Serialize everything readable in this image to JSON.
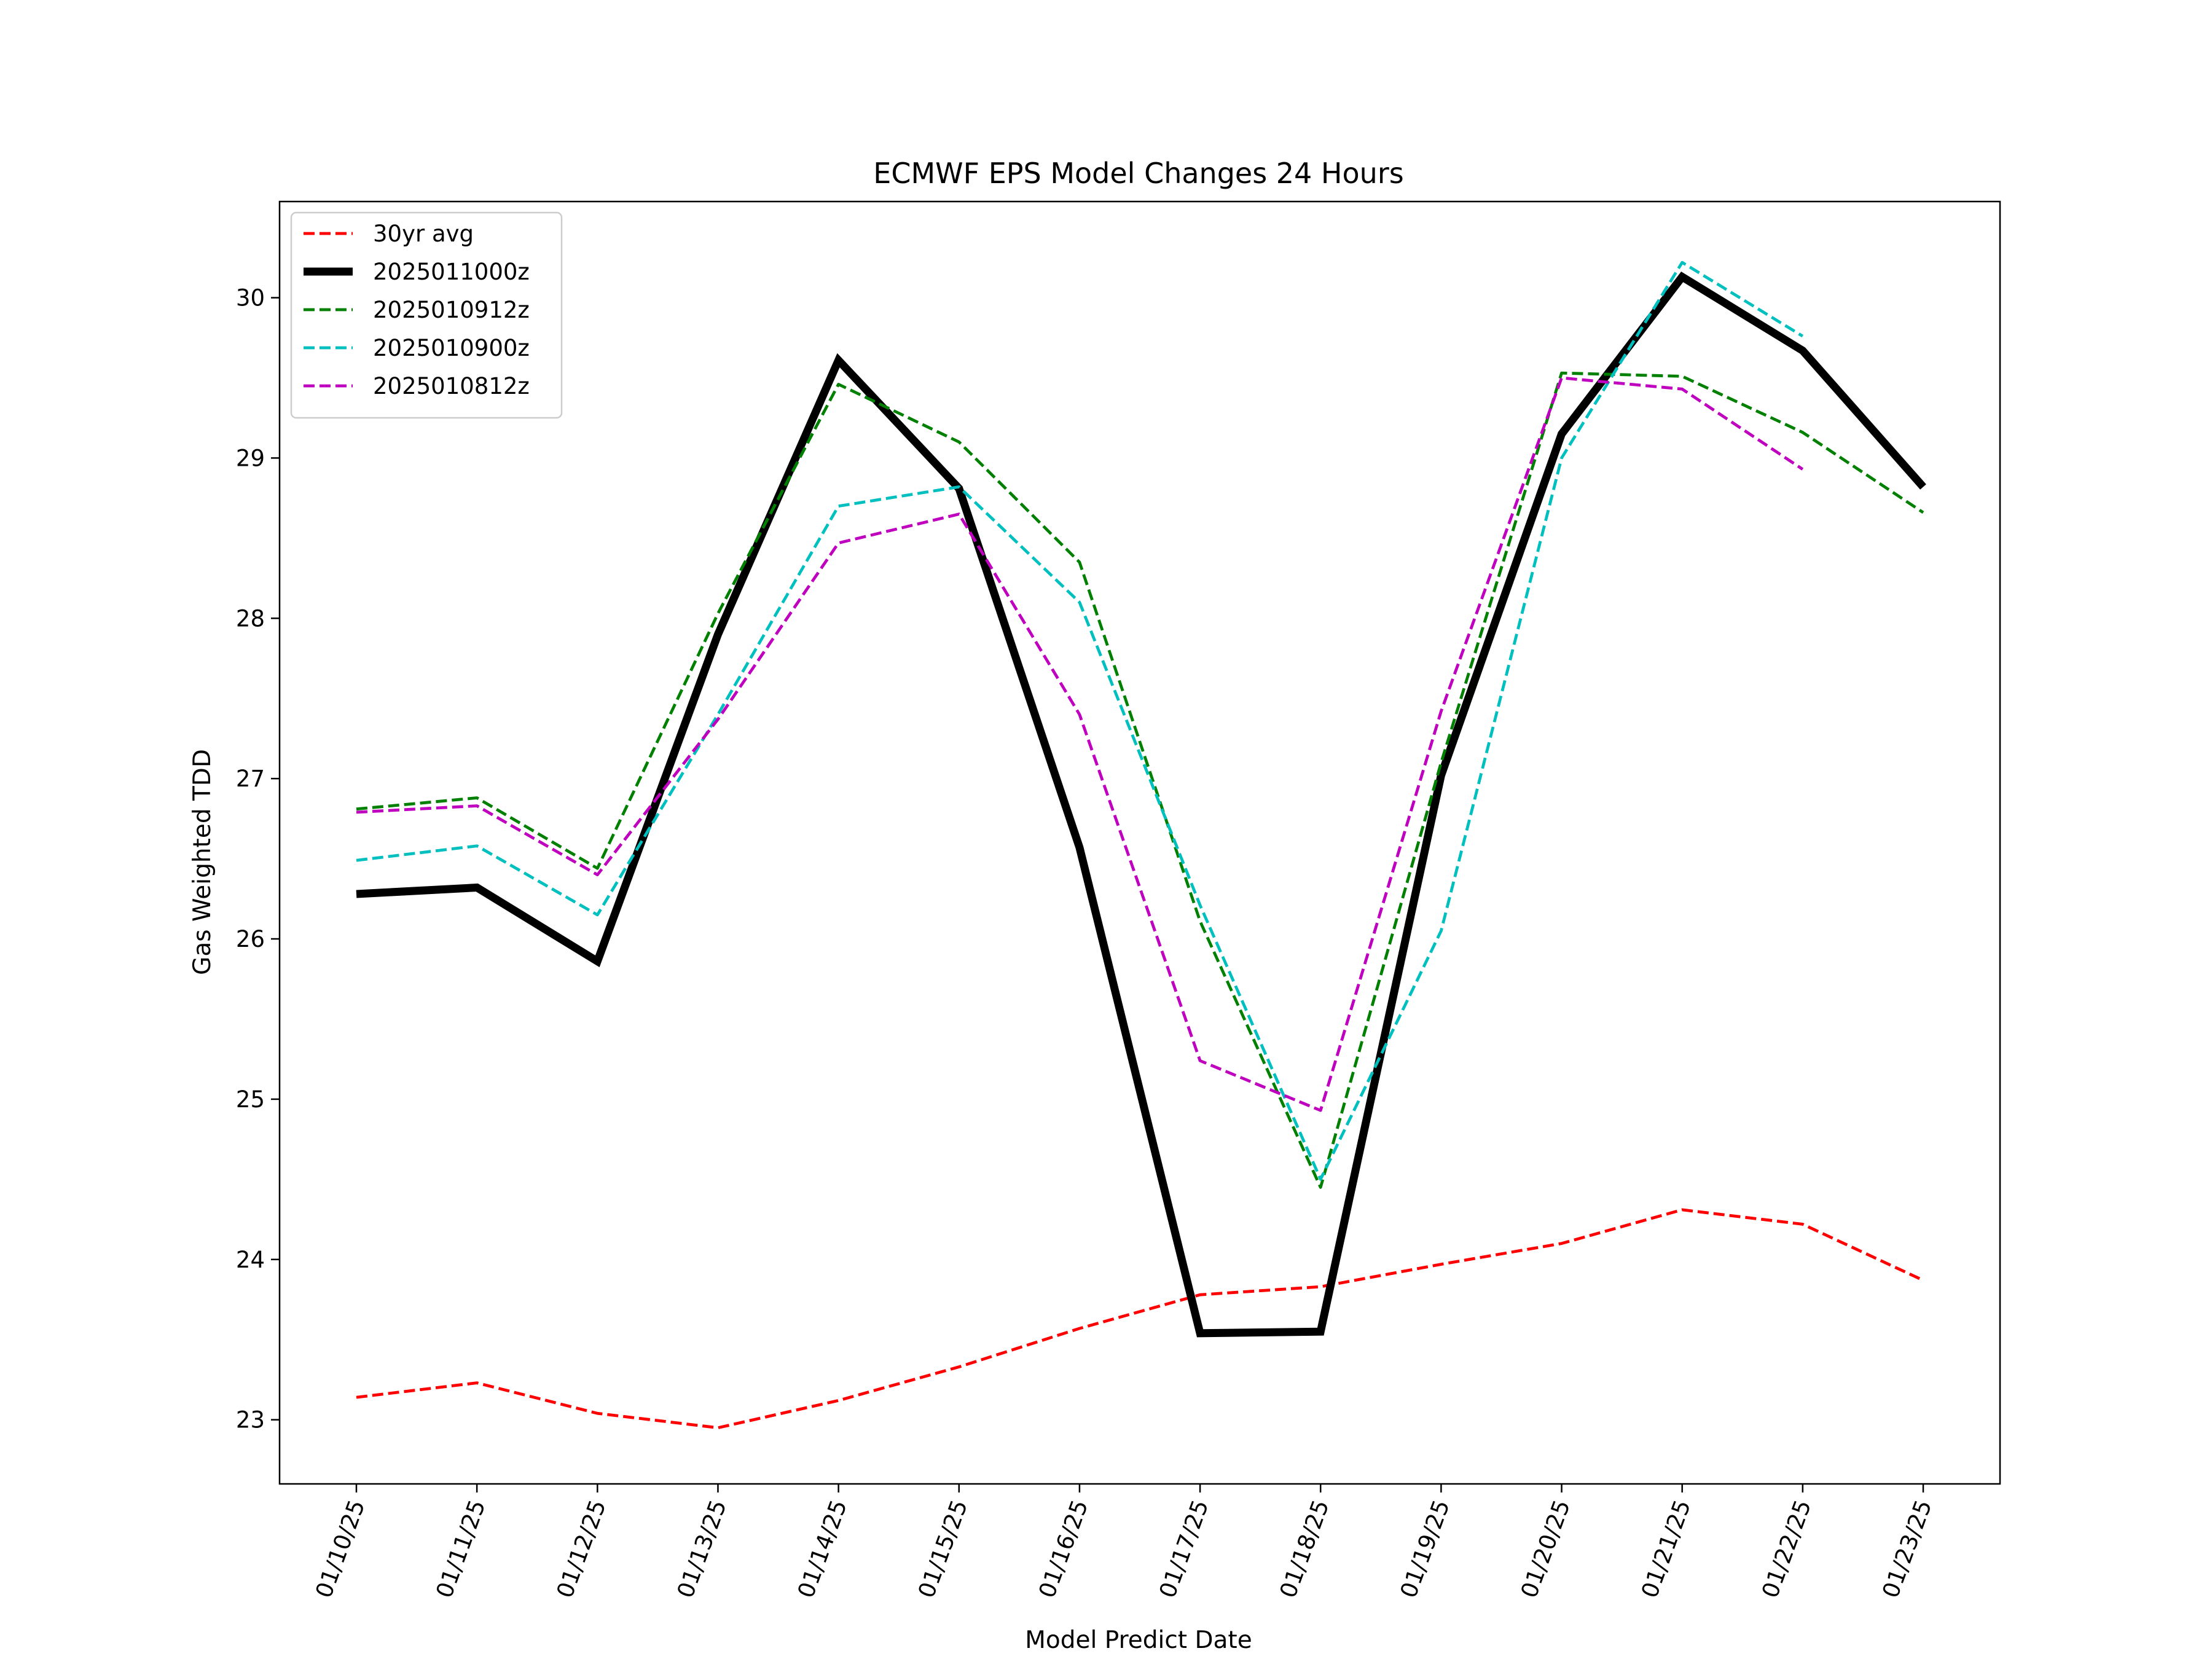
{
  "chart_data": {
    "type": "line",
    "title": "ECMWF EPS Model Changes 24 Hours",
    "xlabel": "Model Predict Date",
    "ylabel": "Gas Weighted TDD",
    "categories": [
      "01/10/25",
      "01/11/25",
      "01/12/25",
      "01/13/25",
      "01/14/25",
      "01/15/25",
      "01/16/25",
      "01/17/25",
      "01/18/25",
      "01/19/25",
      "01/20/25",
      "01/21/25",
      "01/22/25",
      "01/23/25"
    ],
    "ylim": [
      22.6,
      30.6
    ],
    "yticks": [
      23,
      24,
      25,
      26,
      27,
      28,
      29,
      30
    ],
    "grid": false,
    "legend_position": "upper left",
    "series": [
      {
        "name": "30yr avg",
        "color": "#ff0000",
        "style": "dashed",
        "width": "thin",
        "values": [
          23.14,
          23.23,
          23.04,
          22.95,
          23.12,
          23.33,
          23.57,
          23.78,
          23.83,
          23.97,
          24.1,
          24.31,
          24.22,
          23.87
        ]
      },
      {
        "name": "2025011000z",
        "color": "#000000",
        "style": "solid",
        "width": "thick",
        "values": [
          26.28,
          26.32,
          25.86,
          27.9,
          29.61,
          28.81,
          26.57,
          23.54,
          23.55,
          27.02,
          29.15,
          30.13,
          29.67,
          28.82
        ]
      },
      {
        "name": "2025010912z",
        "color": "#008000",
        "style": "dashed",
        "width": "thin",
        "values": [
          26.81,
          26.88,
          26.44,
          28.03,
          29.46,
          29.1,
          28.35,
          26.11,
          24.45,
          27.1,
          29.53,
          29.51,
          29.16,
          28.66
        ]
      },
      {
        "name": "2025010900z",
        "color": "#00bfbf",
        "style": "dashed",
        "width": "thin",
        "values": [
          26.49,
          26.58,
          26.15,
          27.4,
          28.7,
          28.82,
          28.1,
          26.21,
          24.5,
          26.05,
          29.0,
          30.22,
          29.76,
          null
        ]
      },
      {
        "name": "2025010812z",
        "color": "#bf00bf",
        "style": "dashed",
        "width": "thin",
        "values": [
          26.79,
          26.83,
          26.4,
          27.37,
          28.47,
          28.65,
          27.4,
          25.24,
          24.93,
          27.42,
          29.5,
          29.43,
          28.93,
          null
        ]
      }
    ]
  }
}
